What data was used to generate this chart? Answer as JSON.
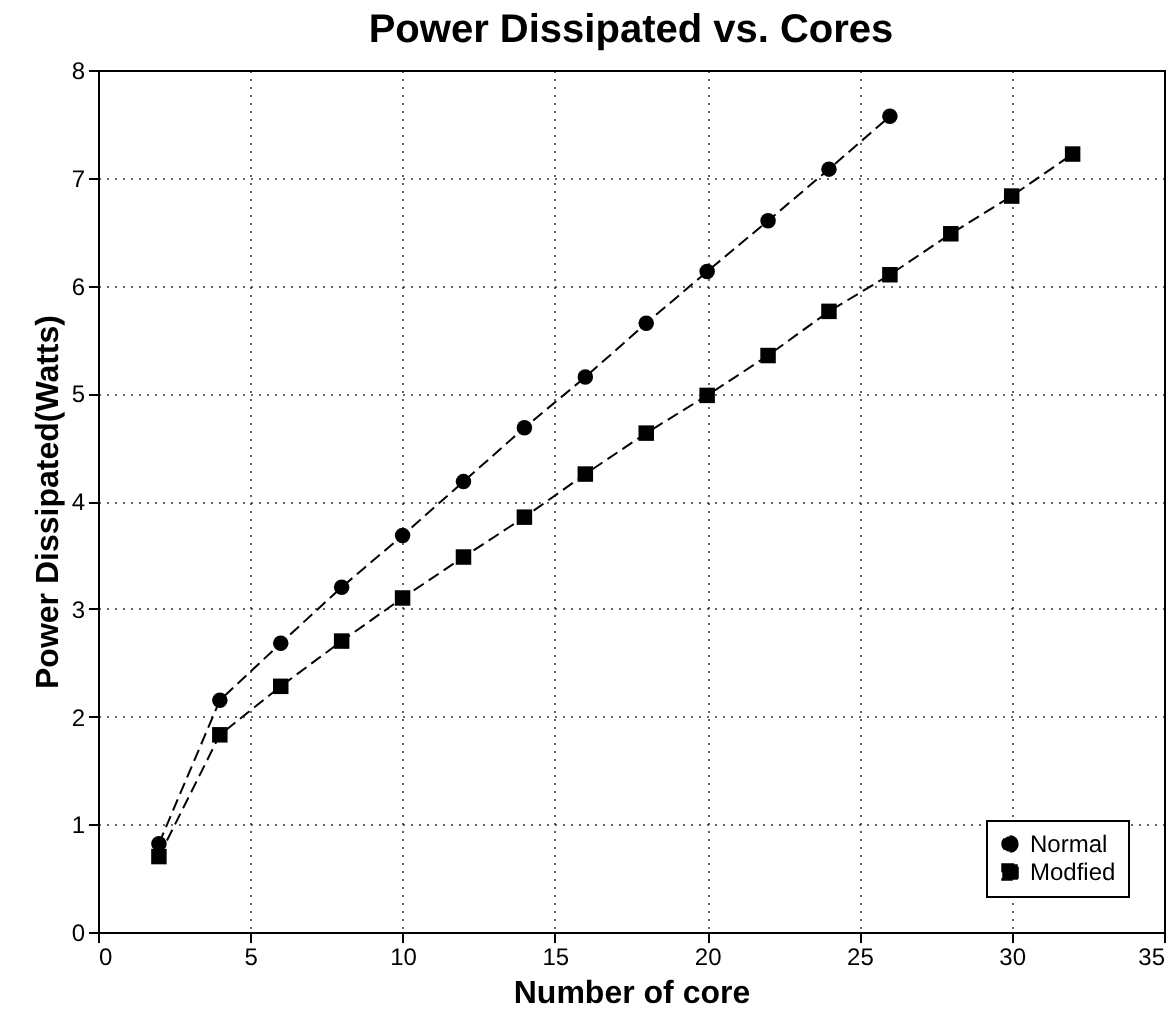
{
  "chart_data": {
    "type": "line",
    "title": "Power Dissipated vs. Cores",
    "xlabel": "Number of core",
    "ylabel": "Power Dissipated(Watts)",
    "xlim": [
      0,
      35
    ],
    "xticks": [
      0,
      5,
      10,
      15,
      20,
      25,
      30,
      35
    ],
    "ylim": [
      0,
      8
    ],
    "yticks": [
      0,
      1,
      2,
      3,
      4,
      5,
      6,
      7,
      8
    ],
    "grid": true,
    "legend": "bottom right",
    "line_style": "dashed",
    "series": [
      {
        "name": "Normal",
        "color": "#000000",
        "marker": "circle",
        "x": [
          2,
          4,
          6,
          8,
          10,
          12,
          14,
          16,
          18,
          20,
          22,
          24,
          26
        ],
        "values": [
          0.82,
          2.15,
          2.68,
          3.2,
          3.68,
          4.18,
          4.68,
          5.15,
          5.65,
          6.13,
          6.6,
          7.08,
          7.57
        ]
      },
      {
        "name": "Modfied",
        "color": "#000000",
        "marker": "square",
        "x": [
          2,
          4,
          6,
          8,
          10,
          12,
          14,
          16,
          18,
          20,
          22,
          24,
          26,
          28,
          30,
          32
        ],
        "values": [
          0.7,
          1.83,
          2.28,
          2.7,
          3.1,
          3.48,
          3.85,
          4.25,
          4.63,
          4.98,
          5.35,
          5.76,
          6.1,
          6.48,
          6.83,
          7.22
        ]
      }
    ]
  }
}
